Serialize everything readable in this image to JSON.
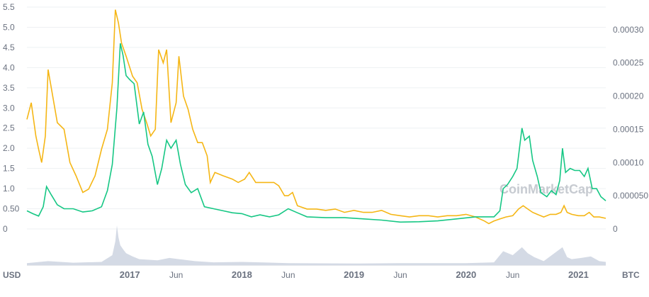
{
  "chart_data": {
    "type": "line",
    "watermark": "CoinMarketCap",
    "left_axis": {
      "unit": "USD",
      "ticks": [
        0,
        0.5,
        1.0,
        1.5,
        2.0,
        2.5,
        3.0,
        3.5,
        4.0,
        4.5,
        5.0,
        5.5
      ],
      "tick_labels": [
        "0",
        "0.50",
        "1.0",
        "1.5",
        "2.0",
        "2.5",
        "3.0",
        "3.5",
        "4.0",
        "4.5",
        "5.0",
        "5.5"
      ],
      "range": [
        0,
        5.5
      ]
    },
    "right_axis": {
      "unit": "BTC",
      "ticks": [
        0,
        5e-05,
        0.0001,
        0.00015,
        0.0002,
        0.00025,
        0.0003
      ],
      "tick_labels": [
        "0",
        "0.000050",
        "0.00010",
        "0.00015",
        "0.00020",
        "0.00025",
        "0.00030"
      ],
      "range": [
        0,
        0.000334
      ]
    },
    "x_axis": {
      "range": [
        "2016-02-01",
        "2021-03-31"
      ],
      "ticks": [
        {
          "date": "2017-01-01",
          "label": "2017",
          "major": true
        },
        {
          "date": "2017-06-01",
          "label": "Jun",
          "major": false
        },
        {
          "date": "2018-01-01",
          "label": "2018",
          "major": true
        },
        {
          "date": "2018-06-01",
          "label": "Jun",
          "major": false
        },
        {
          "date": "2019-01-01",
          "label": "2019",
          "major": true
        },
        {
          "date": "2019-06-01",
          "label": "Jun",
          "major": false
        },
        {
          "date": "2020-01-01",
          "label": "2020",
          "major": true
        },
        {
          "date": "2020-06-01",
          "label": "Jun",
          "major": false
        },
        {
          "date": "2021-01-01",
          "label": "2021",
          "major": true
        }
      ]
    },
    "grid": true,
    "series": [
      {
        "key": "usd",
        "axis": "left",
        "color": "#16c784",
        "points": [
          [
            "2016-02-01",
            0.45
          ],
          [
            "2016-02-20",
            0.38
          ],
          [
            "2016-03-10",
            0.32
          ],
          [
            "2016-03-25",
            0.55
          ],
          [
            "2016-04-05",
            1.05
          ],
          [
            "2016-04-20",
            0.85
          ],
          [
            "2016-05-10",
            0.6
          ],
          [
            "2016-06-01",
            0.5
          ],
          [
            "2016-07-01",
            0.5
          ],
          [
            "2016-08-01",
            0.42
          ],
          [
            "2016-09-01",
            0.45
          ],
          [
            "2016-10-01",
            0.55
          ],
          [
            "2016-10-20",
            0.95
          ],
          [
            "2016-11-05",
            1.6
          ],
          [
            "2016-11-20",
            3.0
          ],
          [
            "2016-12-01",
            4.6
          ],
          [
            "2016-12-10",
            4.3
          ],
          [
            "2016-12-20",
            3.8
          ],
          [
            "2017-01-01",
            3.7
          ],
          [
            "2017-01-15",
            3.6
          ],
          [
            "2017-02-01",
            2.6
          ],
          [
            "2017-02-15",
            2.9
          ],
          [
            "2017-03-01",
            2.1
          ],
          [
            "2017-03-15",
            1.8
          ],
          [
            "2017-04-01",
            1.1
          ],
          [
            "2017-04-15",
            1.5
          ],
          [
            "2017-05-01",
            2.2
          ],
          [
            "2017-05-15",
            2.0
          ],
          [
            "2017-06-01",
            2.2
          ],
          [
            "2017-06-15",
            1.6
          ],
          [
            "2017-07-01",
            1.1
          ],
          [
            "2017-07-20",
            0.9
          ],
          [
            "2017-08-10",
            1.0
          ],
          [
            "2017-09-01",
            0.55
          ],
          [
            "2017-10-01",
            0.5
          ],
          [
            "2017-11-01",
            0.45
          ],
          [
            "2017-12-01",
            0.4
          ],
          [
            "2018-01-01",
            0.38
          ],
          [
            "2018-02-01",
            0.3
          ],
          [
            "2018-03-01",
            0.35
          ],
          [
            "2018-04-01",
            0.3
          ],
          [
            "2018-05-01",
            0.35
          ],
          [
            "2018-06-01",
            0.5
          ],
          [
            "2018-07-01",
            0.4
          ],
          [
            "2018-08-01",
            0.3
          ],
          [
            "2018-10-01",
            0.28
          ],
          [
            "2018-12-01",
            0.28
          ],
          [
            "2019-02-01",
            0.25
          ],
          [
            "2019-04-01",
            0.22
          ],
          [
            "2019-06-01",
            0.17
          ],
          [
            "2019-08-01",
            0.18
          ],
          [
            "2019-10-01",
            0.2
          ],
          [
            "2019-12-01",
            0.25
          ],
          [
            "2020-02-01",
            0.3
          ],
          [
            "2020-03-15",
            0.3
          ],
          [
            "2020-04-01",
            0.3
          ],
          [
            "2020-04-20",
            0.45
          ],
          [
            "2020-05-01",
            1.0
          ],
          [
            "2020-05-15",
            1.1
          ],
          [
            "2020-06-01",
            1.3
          ],
          [
            "2020-06-15",
            1.5
          ],
          [
            "2020-07-01",
            2.5
          ],
          [
            "2020-07-10",
            2.2
          ],
          [
            "2020-07-25",
            2.3
          ],
          [
            "2020-08-05",
            1.7
          ],
          [
            "2020-08-20",
            1.3
          ],
          [
            "2020-09-01",
            0.9
          ],
          [
            "2020-09-20",
            0.8
          ],
          [
            "2020-10-05",
            0.95
          ],
          [
            "2020-10-20",
            0.85
          ],
          [
            "2020-11-01",
            1.2
          ],
          [
            "2020-11-10",
            2.0
          ],
          [
            "2020-11-20",
            1.4
          ],
          [
            "2020-12-05",
            1.5
          ],
          [
            "2020-12-20",
            1.45
          ],
          [
            "2021-01-05",
            1.45
          ],
          [
            "2021-01-20",
            1.3
          ],
          [
            "2021-02-01",
            1.5
          ],
          [
            "2021-02-15",
            1.0
          ],
          [
            "2021-03-01",
            1.0
          ],
          [
            "2021-03-15",
            0.8
          ],
          [
            "2021-03-31",
            0.7
          ]
        ]
      },
      {
        "key": "btc",
        "axis": "right",
        "color": "#f5b615",
        "points": [
          [
            "2016-02-01",
            0.000165
          ],
          [
            "2016-02-15",
            0.00019
          ],
          [
            "2016-03-01",
            0.00014
          ],
          [
            "2016-03-10",
            0.00012
          ],
          [
            "2016-03-20",
            0.0001
          ],
          [
            "2016-04-01",
            0.00014
          ],
          [
            "2016-04-10",
            0.00024
          ],
          [
            "2016-04-25",
            0.0002
          ],
          [
            "2016-05-10",
            0.00016
          ],
          [
            "2016-06-01",
            0.00015
          ],
          [
            "2016-06-20",
            0.0001
          ],
          [
            "2016-07-10",
            8e-05
          ],
          [
            "2016-08-01",
            5.5e-05
          ],
          [
            "2016-08-20",
            6e-05
          ],
          [
            "2016-09-10",
            8e-05
          ],
          [
            "2016-10-01",
            0.00012
          ],
          [
            "2016-10-20",
            0.00015
          ],
          [
            "2016-11-05",
            0.00022
          ],
          [
            "2016-11-15",
            0.00033
          ],
          [
            "2016-11-25",
            0.00031
          ],
          [
            "2016-12-05",
            0.00028
          ],
          [
            "2016-12-20",
            0.00026
          ],
          [
            "2017-01-10",
            0.00023
          ],
          [
            "2017-01-25",
            0.00022
          ],
          [
            "2017-02-10",
            0.00018
          ],
          [
            "2017-02-25",
            0.00016
          ],
          [
            "2017-03-10",
            0.00014
          ],
          [
            "2017-03-25",
            0.00015
          ],
          [
            "2017-04-05",
            0.00027
          ],
          [
            "2017-04-20",
            0.00025
          ],
          [
            "2017-05-01",
            0.00027
          ],
          [
            "2017-05-15",
            0.00016
          ],
          [
            "2017-06-01",
            0.00019
          ],
          [
            "2017-06-10",
            0.00026
          ],
          [
            "2017-06-25",
            0.0002
          ],
          [
            "2017-07-10",
            0.00018
          ],
          [
            "2017-07-25",
            0.00015
          ],
          [
            "2017-08-10",
            0.00013
          ],
          [
            "2017-08-25",
            0.00013
          ],
          [
            "2017-09-10",
            0.00011
          ],
          [
            "2017-09-20",
            7e-05
          ],
          [
            "2017-10-05",
            8.5e-05
          ],
          [
            "2017-11-01",
            8e-05
          ],
          [
            "2017-12-01",
            7.5e-05
          ],
          [
            "2017-12-20",
            7e-05
          ],
          [
            "2018-01-10",
            7.5e-05
          ],
          [
            "2018-01-25",
            8.5e-05
          ],
          [
            "2018-02-15",
            7e-05
          ],
          [
            "2018-03-15",
            7e-05
          ],
          [
            "2018-04-15",
            7e-05
          ],
          [
            "2018-05-01",
            6.5e-05
          ],
          [
            "2018-05-20",
            5e-05
          ],
          [
            "2018-06-01",
            5e-05
          ],
          [
            "2018-06-15",
            5.5e-05
          ],
          [
            "2018-07-01",
            3.5e-05
          ],
          [
            "2018-08-01",
            3e-05
          ],
          [
            "2018-09-01",
            3e-05
          ],
          [
            "2018-10-01",
            2.8e-05
          ],
          [
            "2018-11-01",
            3e-05
          ],
          [
            "2018-12-01",
            2.5e-05
          ],
          [
            "2019-01-01",
            2.8e-05
          ],
          [
            "2019-02-01",
            2.5e-05
          ],
          [
            "2019-03-01",
            2.5e-05
          ],
          [
            "2019-04-01",
            2.8e-05
          ],
          [
            "2019-05-01",
            2.2e-05
          ],
          [
            "2019-06-01",
            2e-05
          ],
          [
            "2019-07-01",
            1.8e-05
          ],
          [
            "2019-08-01",
            2e-05
          ],
          [
            "2019-09-01",
            2e-05
          ],
          [
            "2019-10-01",
            1.8e-05
          ],
          [
            "2019-11-01",
            2e-05
          ],
          [
            "2019-12-01",
            2e-05
          ],
          [
            "2020-01-01",
            2.2e-05
          ],
          [
            "2020-02-01",
            1.8e-05
          ],
          [
            "2020-03-01",
            1.2e-05
          ],
          [
            "2020-03-15",
            8e-06
          ],
          [
            "2020-04-01",
            1.2e-05
          ],
          [
            "2020-04-20",
            1.5e-05
          ],
          [
            "2020-05-10",
            1.8e-05
          ],
          [
            "2020-06-01",
            2e-05
          ],
          [
            "2020-06-20",
            3e-05
          ],
          [
            "2020-07-05",
            3.5e-05
          ],
          [
            "2020-07-20",
            3e-05
          ],
          [
            "2020-08-05",
            2.5e-05
          ],
          [
            "2020-08-20",
            2.2e-05
          ],
          [
            "2020-09-10",
            1.8e-05
          ],
          [
            "2020-10-01",
            2.2e-05
          ],
          [
            "2020-10-20",
            2.2e-05
          ],
          [
            "2020-11-05",
            2.5e-05
          ],
          [
            "2020-11-15",
            3.5e-05
          ],
          [
            "2020-11-25",
            2.5e-05
          ],
          [
            "2020-12-10",
            2.2e-05
          ],
          [
            "2021-01-01",
            2e-05
          ],
          [
            "2021-01-20",
            2e-05
          ],
          [
            "2021-02-05",
            2.5e-05
          ],
          [
            "2021-02-20",
            1.8e-05
          ],
          [
            "2021-03-10",
            1.8e-05
          ],
          [
            "2021-03-31",
            1.6e-05
          ]
        ]
      }
    ],
    "volume": {
      "color": "#cfd6e2",
      "points": [
        [
          "2016-02-01",
          0.05
        ],
        [
          "2016-04-10",
          0.1
        ],
        [
          "2016-07-01",
          0.06
        ],
        [
          "2016-10-01",
          0.08
        ],
        [
          "2016-11-05",
          0.25
        ],
        [
          "2016-11-15",
          0.6
        ],
        [
          "2016-11-20",
          1.0
        ],
        [
          "2016-11-25",
          0.7
        ],
        [
          "2016-12-01",
          0.5
        ],
        [
          "2016-12-10",
          0.4
        ],
        [
          "2016-12-20",
          0.3
        ],
        [
          "2017-01-10",
          0.22
        ],
        [
          "2017-02-01",
          0.15
        ],
        [
          "2017-04-01",
          0.12
        ],
        [
          "2017-05-10",
          0.18
        ],
        [
          "2017-06-10",
          0.15
        ],
        [
          "2017-08-01",
          0.1
        ],
        [
          "2017-10-01",
          0.07
        ],
        [
          "2018-01-01",
          0.08
        ],
        [
          "2018-06-01",
          0.05
        ],
        [
          "2019-01-01",
          0.04
        ],
        [
          "2019-06-01",
          0.05
        ],
        [
          "2020-01-01",
          0.05
        ],
        [
          "2020-04-01",
          0.07
        ],
        [
          "2020-05-01",
          0.35
        ],
        [
          "2020-06-01",
          0.25
        ],
        [
          "2020-07-01",
          0.45
        ],
        [
          "2020-07-20",
          0.3
        ],
        [
          "2020-08-10",
          0.2
        ],
        [
          "2020-09-10",
          0.1
        ],
        [
          "2020-11-10",
          0.45
        ],
        [
          "2020-11-25",
          0.2
        ],
        [
          "2020-12-10",
          0.15
        ],
        [
          "2021-01-10",
          0.18
        ],
        [
          "2021-02-10",
          0.22
        ],
        [
          "2021-03-10",
          0.1
        ],
        [
          "2021-03-31",
          0.08
        ]
      ]
    }
  }
}
